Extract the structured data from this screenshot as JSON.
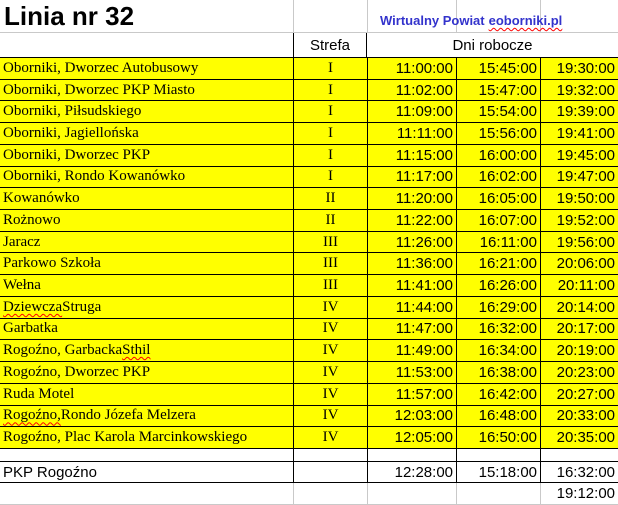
{
  "title": "Linia nr 32",
  "link": {
    "prefix": "Wirtualny Powiat",
    "domain": "eoborniki.pl"
  },
  "columns": {
    "strefa": "Strefa",
    "dni_robocze": "Dni robocze"
  },
  "rows": [
    {
      "name": "Oborniki, Dworzec Autobusowy",
      "zone": "I",
      "times": [
        "11:00:00",
        "15:45:00",
        "19:30:00"
      ]
    },
    {
      "name": "Oborniki, Dworzec PKP Miasto",
      "zone": "I",
      "times": [
        "11:02:00",
        "15:47:00",
        "19:32:00"
      ]
    },
    {
      "name": "Oborniki, Piłsudskiego",
      "zone": "I",
      "times": [
        "11:09:00",
        "15:54:00",
        "19:39:00"
      ]
    },
    {
      "name": "Oborniki, Jagiellońska",
      "zone": "I",
      "times": [
        "11:11:00",
        "15:56:00",
        "19:41:00"
      ]
    },
    {
      "name": "Oborniki, Dworzec PKP",
      "zone": "I",
      "times": [
        "11:15:00",
        "16:00:00",
        "19:45:00"
      ]
    },
    {
      "name": "Oborniki, Rondo Kowanówko",
      "zone": "I",
      "times": [
        "11:17:00",
        "16:02:00",
        "19:47:00"
      ]
    },
    {
      "name": "Kowanówko",
      "zone": "II",
      "times": [
        "11:20:00",
        "16:05:00",
        "19:50:00"
      ]
    },
    {
      "name": "Rożnowo",
      "zone": "II",
      "times": [
        "11:22:00",
        "16:07:00",
        "19:52:00"
      ]
    },
    {
      "name": "Jaracz",
      "zone": "III",
      "times": [
        "11:26:00",
        "16:11:00",
        "19:56:00"
      ]
    },
    {
      "name": "Parkowo Szkoła",
      "zone": "III",
      "times": [
        "11:36:00",
        "16:21:00",
        "20:06:00"
      ]
    },
    {
      "name": "Wełna",
      "zone": "III",
      "times": [
        "11:41:00",
        "16:26:00",
        "20:11:00"
      ]
    },
    {
      "name": "Dziewcza Struga",
      "zone": "IV",
      "times": [
        "11:44:00",
        "16:29:00",
        "20:14:00"
      ],
      "misspelled": "Dziewcza"
    },
    {
      "name": "Garbatka",
      "zone": "IV",
      "times": [
        "11:47:00",
        "16:32:00",
        "20:17:00"
      ]
    },
    {
      "name": "Rogoźno, Garbacka Sthil",
      "zone": "IV",
      "times": [
        "11:49:00",
        "16:34:00",
        "20:19:00"
      ],
      "misspelled": "Sthil"
    },
    {
      "name": "Rogoźno, Dworzec PKP",
      "zone": "IV",
      "times": [
        "11:53:00",
        "16:38:00",
        "20:23:00"
      ]
    },
    {
      "name": "Ruda Motel",
      "zone": "IV",
      "times": [
        "11:57:00",
        "16:42:00",
        "20:27:00"
      ]
    },
    {
      "name": "Rogoźno, Rondo Józefa Melzera",
      "zone": "IV",
      "times": [
        "12:03:00",
        "16:48:00",
        "20:33:00"
      ],
      "misspelled": "Rogoźno,"
    },
    {
      "name": "Rogoźno, Plac Karola Marcinkowskiego",
      "zone": "IV",
      "times": [
        "12:05:00",
        "16:50:00",
        "20:35:00"
      ]
    }
  ],
  "footer": {
    "name": "PKP Rogoźno",
    "times": [
      "12:28:00",
      "15:18:00",
      "16:32:00"
    ],
    "late_time": "19:12:00"
  },
  "colors": {
    "row_bg": "#FFFF00",
    "link_blue": "#3333CC",
    "squiggle_red": "#FF0000",
    "border_black": "#000000",
    "gridline_gray": "#C9C9C9"
  }
}
